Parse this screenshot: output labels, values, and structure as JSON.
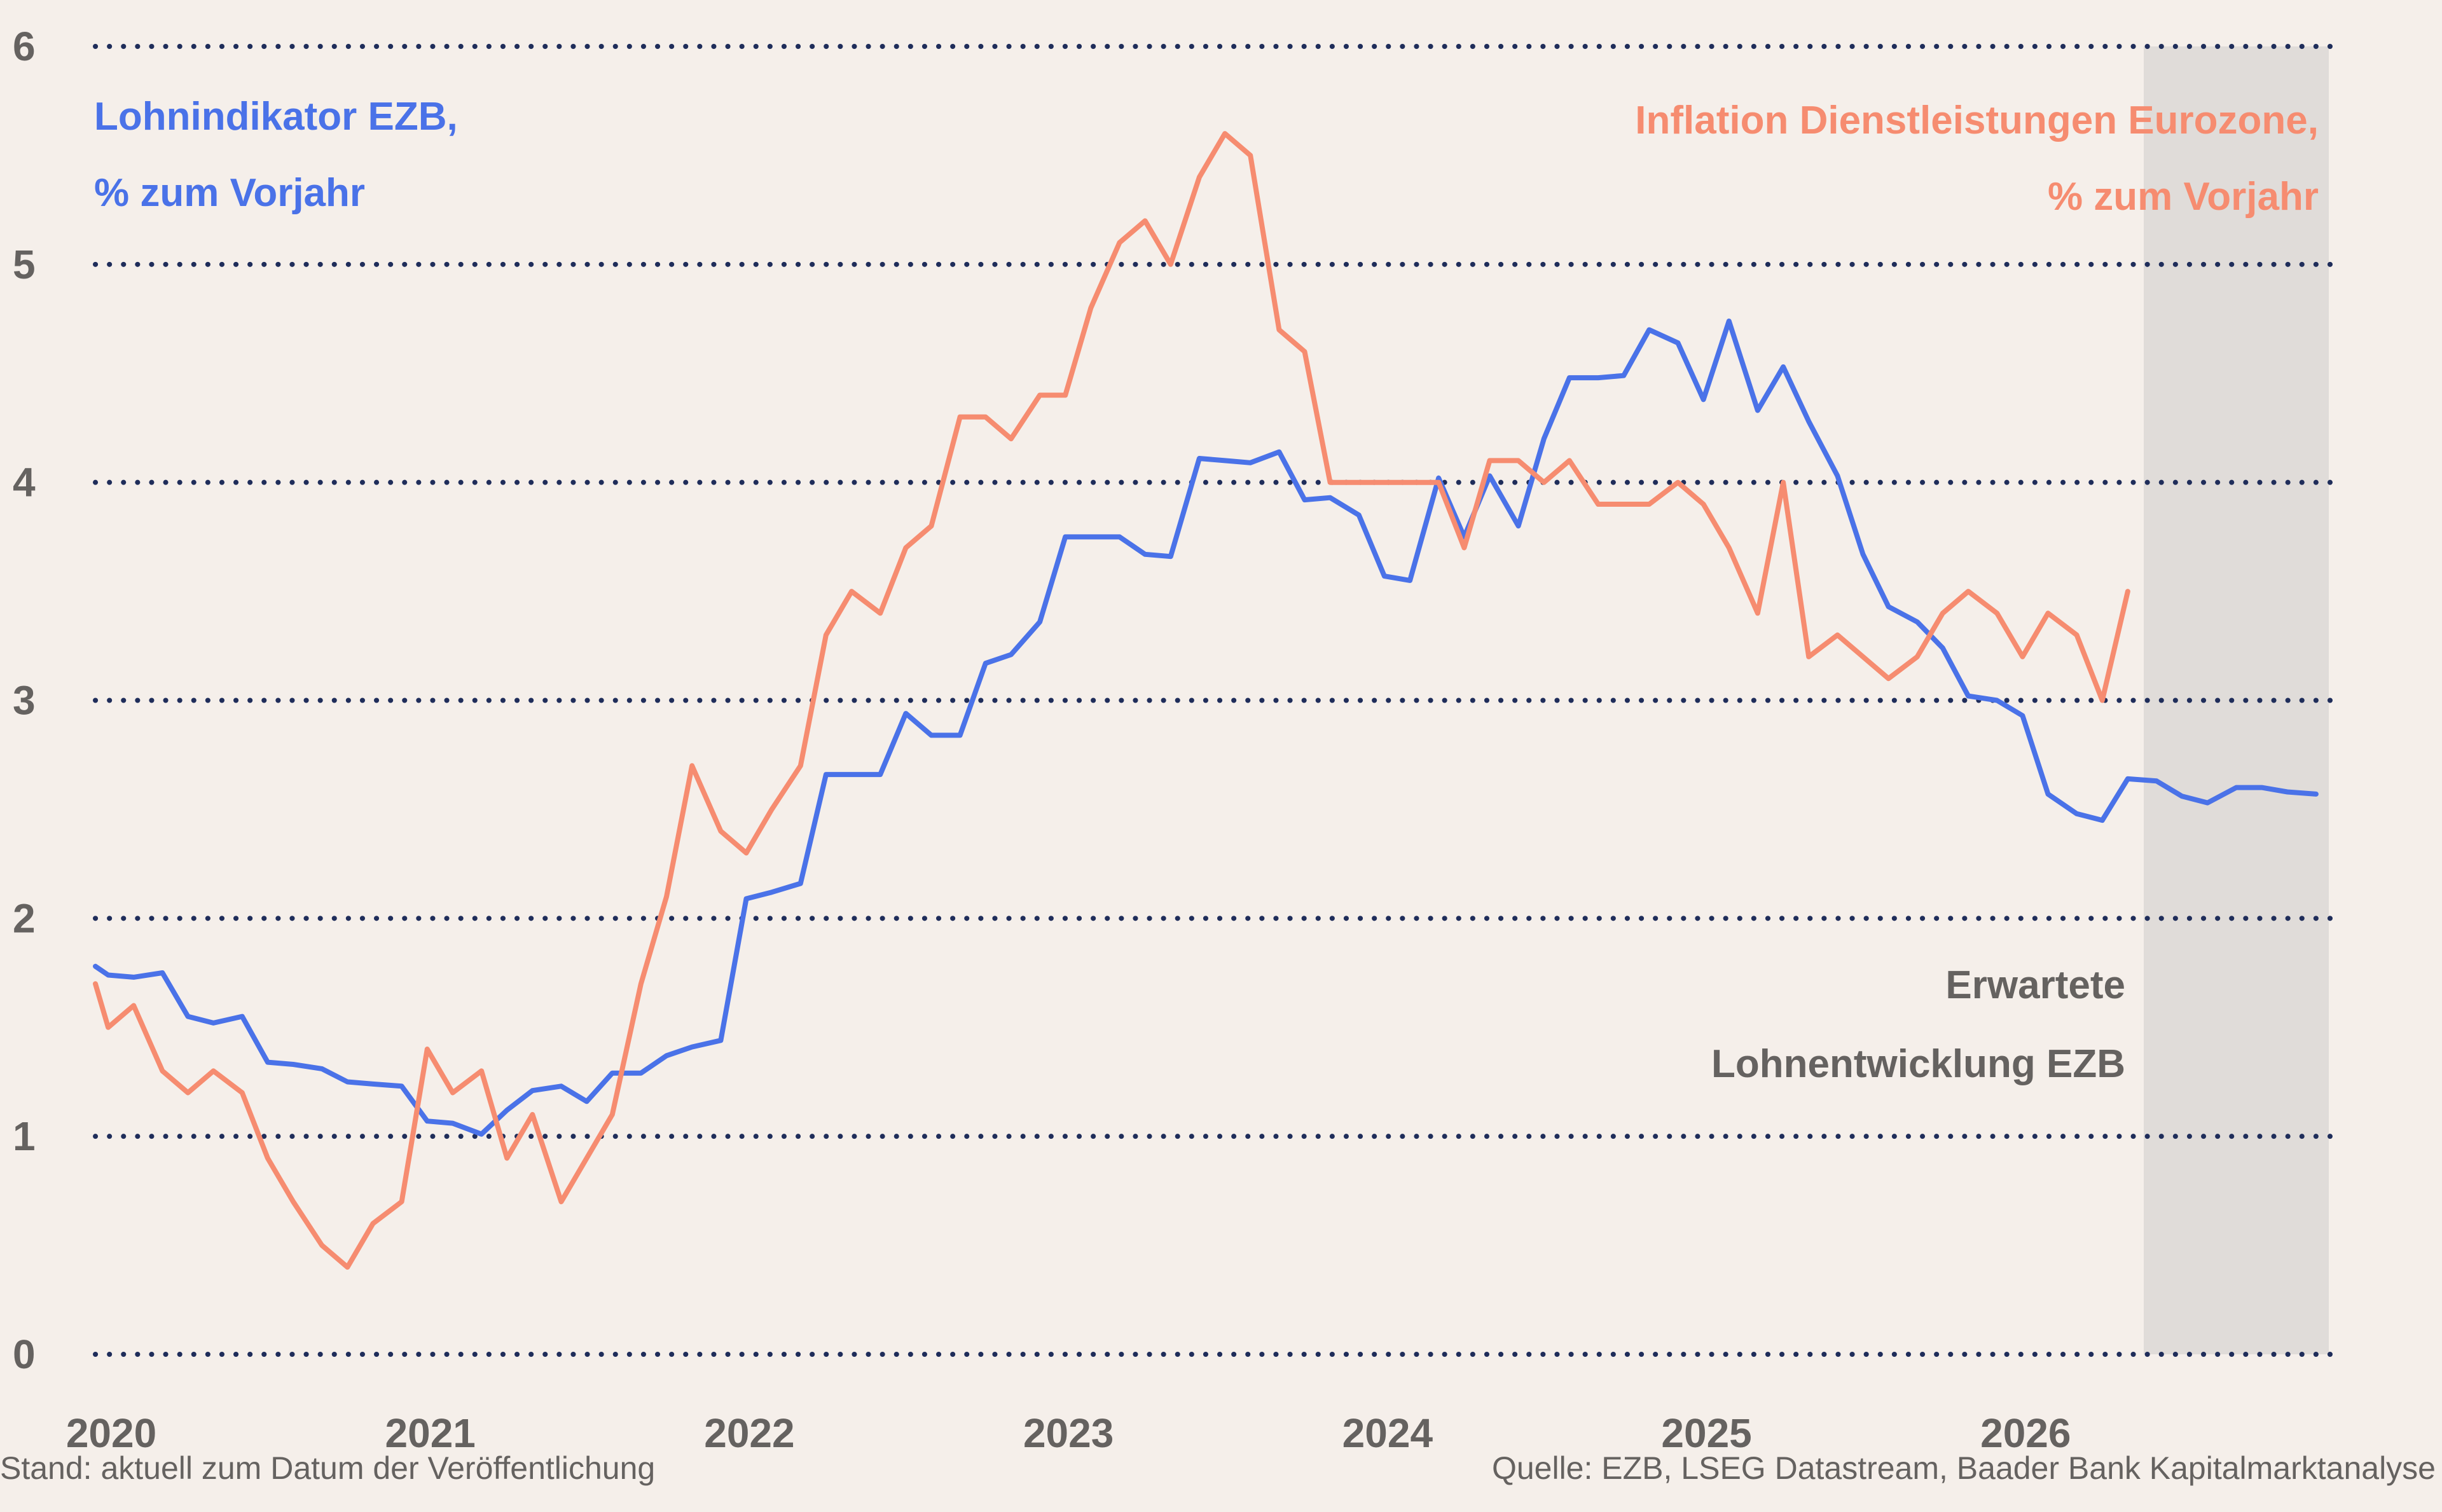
{
  "chart_data": {
    "type": "line",
    "xlim": [
      2020.0,
      2027.0
    ],
    "ylim": [
      0,
      6
    ],
    "grid": true,
    "x_ticks": [
      "2020",
      "2021",
      "2022",
      "2023",
      "2024",
      "2025",
      "2026"
    ],
    "y_ticks": [
      "0",
      "1",
      "2",
      "3",
      "4",
      "5",
      "6"
    ],
    "forecast_start": 2026.42,
    "annotation": [
      "Erwartete",
      "Lohnentwicklung EZB"
    ],
    "series": [
      {
        "name": "Lohnindikator EZB, % zum Vorjahr",
        "name_lines": [
          "Lohnindikator EZB,",
          "% zum Vorjahr"
        ],
        "color": "#4a72e8",
        "x": [
          2020.0,
          2020.04,
          2020.12,
          2020.21,
          2020.29,
          2020.37,
          2020.46,
          2020.54,
          2020.62,
          2020.71,
          2020.79,
          2020.87,
          2020.96,
          2021.04,
          2021.12,
          2021.21,
          2021.29,
          2021.37,
          2021.46,
          2021.54,
          2021.62,
          2021.71,
          2021.79,
          2021.87,
          2021.96,
          2022.04,
          2022.12,
          2022.21,
          2022.29,
          2022.37,
          2022.46,
          2022.54,
          2022.62,
          2022.71,
          2022.79,
          2022.87,
          2022.96,
          2023.04,
          2023.12,
          2023.21,
          2023.29,
          2023.37,
          2023.46,
          2023.54,
          2023.62,
          2023.71,
          2023.79,
          2023.87,
          2023.96,
          2024.04,
          2024.12,
          2024.21,
          2024.29,
          2024.37,
          2024.46,
          2024.54,
          2024.62,
          2024.71,
          2024.79,
          2024.87,
          2024.96,
          2025.04,
          2025.12,
          2025.21,
          2025.29,
          2025.37,
          2025.46,
          2025.54,
          2025.62,
          2025.71,
          2025.79,
          2025.87,
          2025.96,
          2026.04,
          2026.12,
          2026.21,
          2026.29,
          2026.37,
          2026.46,
          2026.54,
          2026.62,
          2026.71,
          2026.79,
          2026.87,
          2026.96
        ],
        "values": [
          1.78,
          1.74,
          1.73,
          1.75,
          1.55,
          1.52,
          1.55,
          1.34,
          1.33,
          1.31,
          1.25,
          1.24,
          1.23,
          1.07,
          1.06,
          1.01,
          1.12,
          1.21,
          1.23,
          1.16,
          1.29,
          1.29,
          1.37,
          1.41,
          1.44,
          2.09,
          2.12,
          2.16,
          2.66,
          2.66,
          2.66,
          2.94,
          2.84,
          2.84,
          3.17,
          3.21,
          3.36,
          3.75,
          3.75,
          3.75,
          3.67,
          3.66,
          4.11,
          4.1,
          4.09,
          4.14,
          3.92,
          3.93,
          3.85,
          3.57,
          3.55,
          4.02,
          3.75,
          4.03,
          3.8,
          4.2,
          4.48,
          4.48,
          4.49,
          4.7,
          4.64,
          4.38,
          4.74,
          4.33,
          4.53,
          4.28,
          4.03,
          3.67,
          3.43,
          3.36,
          3.24,
          3.02,
          3.0,
          2.93,
          2.57,
          2.48,
          2.45,
          2.64,
          2.63,
          2.56,
          2.53,
          2.6,
          2.6,
          2.58,
          2.57
        ]
      },
      {
        "name": "Inflation Dienstleistungen Eurozone, % zum Vorjahr",
        "name_lines": [
          "Inflation Dienstleistungen Eurozone,",
          "% zum Vorjahr"
        ],
        "color": "#f68c70",
        "x": [
          2020.0,
          2020.04,
          2020.12,
          2020.21,
          2020.29,
          2020.37,
          2020.46,
          2020.54,
          2020.62,
          2020.71,
          2020.79,
          2020.87,
          2020.96,
          2021.04,
          2021.12,
          2021.21,
          2021.29,
          2021.37,
          2021.46,
          2021.54,
          2021.62,
          2021.71,
          2021.79,
          2021.87,
          2021.96,
          2022.04,
          2022.12,
          2022.21,
          2022.29,
          2022.37,
          2022.46,
          2022.54,
          2022.62,
          2022.71,
          2022.79,
          2022.87,
          2022.96,
          2023.04,
          2023.12,
          2023.21,
          2023.29,
          2023.37,
          2023.46,
          2023.54,
          2023.62,
          2023.71,
          2023.79,
          2023.87,
          2023.96,
          2024.04,
          2024.12,
          2024.21,
          2024.29,
          2024.37,
          2024.46,
          2024.54,
          2024.62,
          2024.71,
          2024.79,
          2024.87,
          2024.96,
          2025.04,
          2025.12,
          2025.21,
          2025.29,
          2025.37,
          2025.46,
          2025.54,
          2025.62,
          2025.71,
          2025.79,
          2025.87,
          2025.96,
          2026.04,
          2026.12,
          2026.21,
          2026.29,
          2026.37
        ],
        "values": [
          1.7,
          1.5,
          1.6,
          1.3,
          1.2,
          1.3,
          1.2,
          0.9,
          0.7,
          0.5,
          0.4,
          0.6,
          0.7,
          1.4,
          1.2,
          1.3,
          0.9,
          1.1,
          0.7,
          0.9,
          1.1,
          1.7,
          2.1,
          2.7,
          2.4,
          2.3,
          2.5,
          2.7,
          3.3,
          3.5,
          3.4,
          3.7,
          3.8,
          4.3,
          4.3,
          4.2,
          4.4,
          4.4,
          4.8,
          5.1,
          5.2,
          5.0,
          5.4,
          5.6,
          5.5,
          4.7,
          4.6,
          4.0,
          4.0,
          4.0,
          4.0,
          4.0,
          3.7,
          4.1,
          4.1,
          4.0,
          4.1,
          3.9,
          3.9,
          3.9,
          4.0,
          3.9,
          3.7,
          3.4,
          4.0,
          3.2,
          3.3,
          3.2,
          3.1,
          3.2,
          3.4,
          3.5,
          3.4,
          3.2,
          3.4,
          3.3,
          3.0,
          3.5
        ]
      }
    ]
  },
  "footer": {
    "left": "Stand: aktuell zum Datum der Veröffentlichung",
    "right": "Quelle: EZB, LSEG Datastream, Baader Bank Kapitalmarktanalyse"
  }
}
